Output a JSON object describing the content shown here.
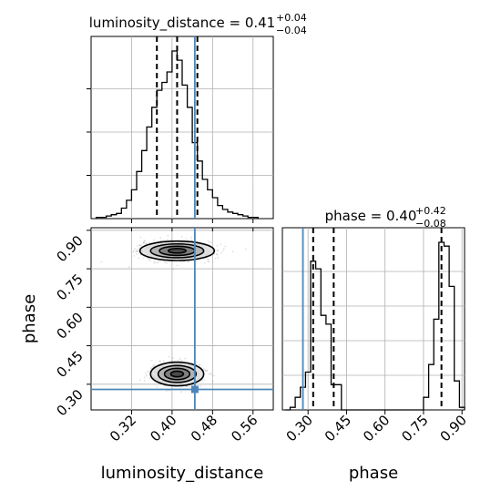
{
  "colors": {
    "truth": "#4c86b8",
    "hist": "#000000",
    "grid": "#b0b0b0",
    "scatter": "#555555"
  },
  "titles": {
    "ld": {
      "label": "luminosity_distance = ",
      "value": "0.41",
      "plus": "+0.04",
      "minus": "−0.04"
    },
    "phase": {
      "label": "phase = ",
      "value": "0.40",
      "plus": "+0.42",
      "minus": "−0.08"
    }
  },
  "chart_data": {
    "type": "corner",
    "parameters": [
      "luminosity_distance",
      "phase"
    ],
    "xlabel_bottom_left": "luminosity_distance",
    "xlabel_bottom_right": "phase",
    "ylabel_left": "phase",
    "truth": {
      "luminosity_distance": 0.445,
      "phase": 0.28
    },
    "luminosity_distance": {
      "range": [
        0.24,
        0.6
      ],
      "ticks": [
        "0.32",
        "0.40",
        "0.48",
        "0.56"
      ],
      "tick_values": [
        0.32,
        0.4,
        0.48,
        0.56
      ],
      "quantiles": [
        0.37,
        0.41,
        0.45
      ],
      "hist_bin_edges": [
        0.25,
        0.26,
        0.27,
        0.28,
        0.29,
        0.3,
        0.31,
        0.32,
        0.33,
        0.34,
        0.35,
        0.36,
        0.37,
        0.38,
        0.39,
        0.4,
        0.41,
        0.42,
        0.43,
        0.44,
        0.45,
        0.46,
        0.47,
        0.48,
        0.49,
        0.5,
        0.51,
        0.52,
        0.53,
        0.54,
        0.55,
        0.56,
        0.57
      ],
      "hist_counts": [
        1,
        1,
        2,
        3,
        4,
        8,
        14,
        22,
        36,
        52,
        70,
        85,
        98,
        104,
        112,
        128,
        121,
        102,
        85,
        58,
        44,
        30,
        22,
        16,
        10,
        7,
        5,
        4,
        3,
        2,
        1,
        1
      ]
    },
    "phase": {
      "range": [
        0.2,
        0.91
      ],
      "ticks": [
        "0.30",
        "0.45",
        "0.60",
        "0.75",
        "0.90"
      ],
      "tick_values": [
        0.3,
        0.45,
        0.6,
        0.75,
        0.9
      ],
      "quantiles": [
        0.32,
        0.4,
        0.82
      ],
      "hist_bin_edges": [
        0.21,
        0.23,
        0.25,
        0.27,
        0.29,
        0.31,
        0.33,
        0.35,
        0.37,
        0.39,
        0.41,
        0.43,
        0.45,
        0.47,
        0.49,
        0.51,
        0.53,
        0.55,
        0.57,
        0.59,
        0.61,
        0.63,
        0.65,
        0.67,
        0.69,
        0.71,
        0.73,
        0.75,
        0.77,
        0.79,
        0.81,
        0.83,
        0.85,
        0.87,
        0.89,
        0.91
      ],
      "hist_counts": [
        0,
        2,
        10,
        18,
        30,
        118,
        112,
        75,
        68,
        20,
        20,
        0,
        0,
        0,
        0,
        0,
        0,
        0,
        0,
        0,
        0,
        0,
        0,
        0,
        0,
        0,
        0,
        10,
        36,
        72,
        133,
        130,
        98,
        23,
        2
      ]
    },
    "clusters": [
      {
        "luminosity_distance": 0.41,
        "phase": 0.82,
        "sd_x": 0.035,
        "sd_y": 0.018
      },
      {
        "luminosity_distance": 0.41,
        "phase": 0.34,
        "sd_x": 0.025,
        "sd_y": 0.022
      }
    ]
  }
}
